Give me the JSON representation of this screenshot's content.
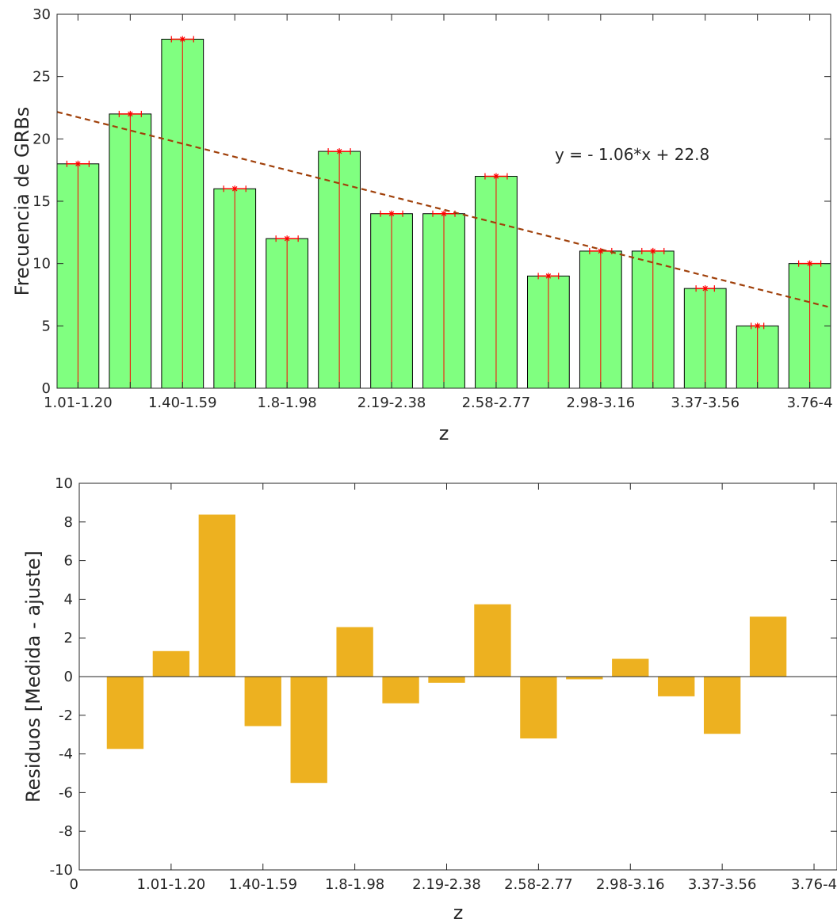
{
  "chart_data": [
    {
      "type": "bar",
      "ylabel": "Frecuencia de GRBs",
      "xlabel": "z",
      "ylim": [
        0,
        30
      ],
      "yticks": [
        0,
        5,
        10,
        15,
        20,
        25,
        30
      ],
      "categories": [
        "1.01-1.20",
        "",
        "1.40-1.59",
        "",
        "1.8-1.98",
        "",
        "2.19-2.38",
        "",
        "2.58-2.77",
        "",
        "2.98-3.16",
        "",
        "3.37-3.56",
        "",
        "3.76-4"
      ],
      "values": [
        18,
        22,
        28,
        16,
        12,
        19,
        14,
        14,
        17,
        9,
        11,
        11,
        8,
        5,
        10
      ],
      "bar_color": "#80ff80",
      "errorbar_color": "#ff0000",
      "fit": {
        "slope": -1.06,
        "intercept": 22.8,
        "label": "y = - 1.06*x + 22.8",
        "color": "#a0400a"
      },
      "grid": false
    },
    {
      "type": "bar",
      "ylabel": "Residuos [Medida - ajuste]",
      "xlabel": "z",
      "ylim": [
        -10,
        10
      ],
      "yticks": [
        -10,
        -8,
        -6,
        -4,
        -2,
        0,
        2,
        4,
        6,
        8,
        10
      ],
      "xticks": [
        0,
        2,
        4,
        6,
        8,
        10,
        12,
        14,
        16
      ],
      "xticklabels": [
        "0",
        "1.01-1.20",
        "1.40-1.59",
        "1.8-1.98",
        "2.19-2.38",
        "2.58-2.77",
        "2.98-3.16",
        "3.37-3.56",
        "3.76-4"
      ],
      "xlim": [
        0,
        16.5
      ],
      "x": [
        1,
        2,
        3,
        4,
        5,
        6,
        7,
        8,
        9,
        10,
        11,
        12,
        13,
        14,
        15
      ],
      "values": [
        -3.74,
        1.32,
        8.38,
        -2.56,
        -5.5,
        2.56,
        -1.38,
        -0.32,
        3.74,
        -3.2,
        -0.14,
        0.92,
        -1.02,
        -2.96,
        3.1
      ],
      "bar_color": "#edb120",
      "grid": false
    }
  ]
}
